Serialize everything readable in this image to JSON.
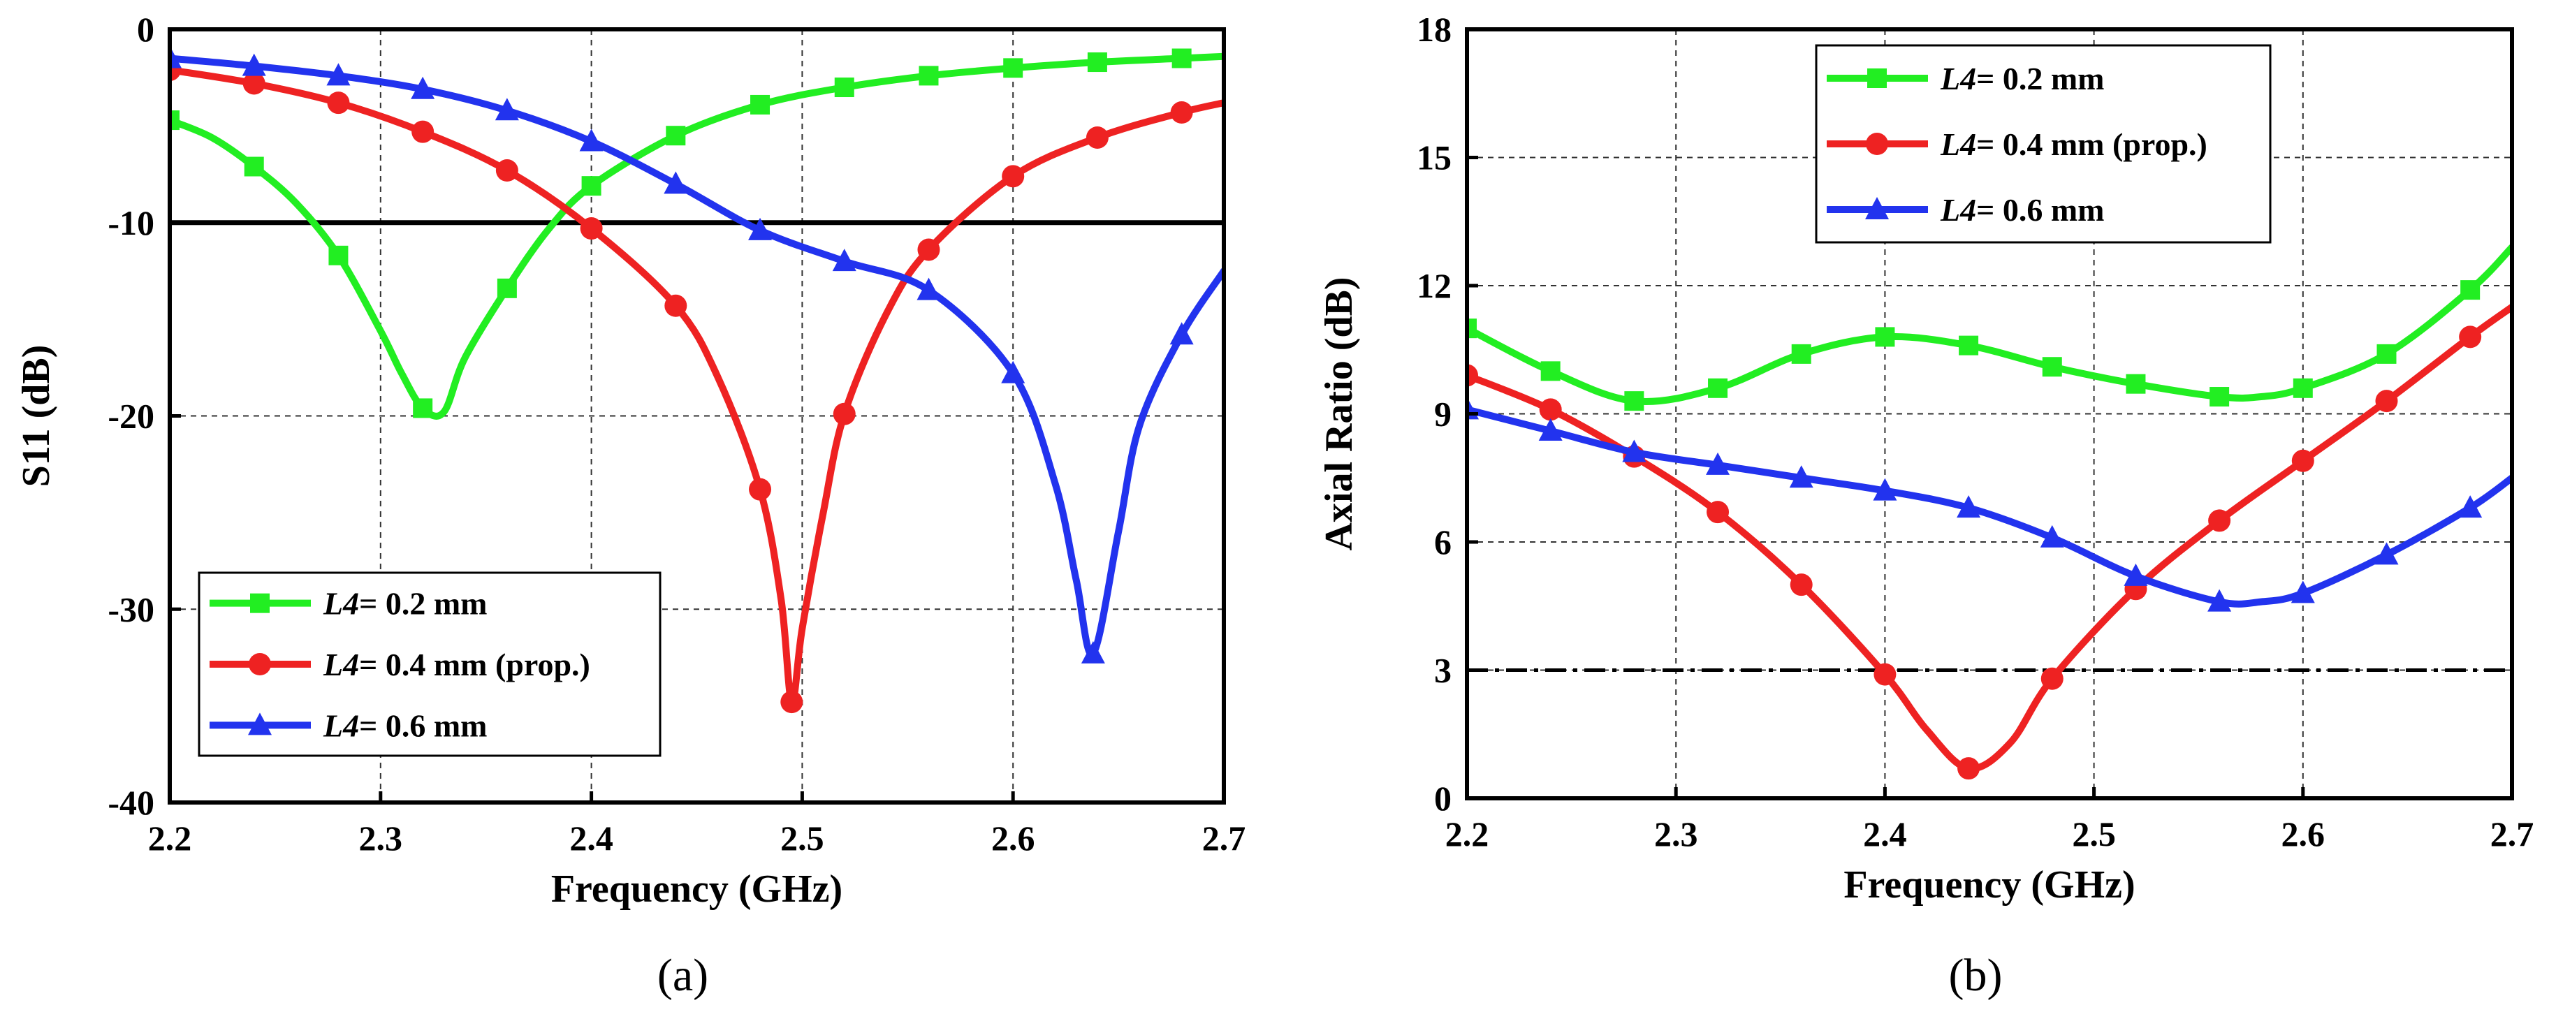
{
  "chart_data": [
    {
      "type": "line",
      "panel": "a",
      "panel_label": "(a)",
      "xlabel": "Frequency (GHz)",
      "ylabel": "S11 (dB)",
      "xlim": [
        2.2,
        2.7
      ],
      "ylim": [
        -40,
        0
      ],
      "xticks": [
        "2.2",
        "2.3",
        "2.4",
        "2.5",
        "2.6",
        "2.7"
      ],
      "yticks": [
        "0",
        "-10",
        "-20",
        "-30",
        "-40"
      ],
      "grid": true,
      "reference_line": {
        "y": -10,
        "style": "solid"
      },
      "legend_position": "bottom-left",
      "series": [
        {
          "name_italic": "L4",
          "name_rest": "= 0.2 mm",
          "color": "#22ee22",
          "marker": "square",
          "x": [
            2.2,
            2.22,
            2.24,
            2.26,
            2.28,
            2.3,
            2.31,
            2.32,
            2.33,
            2.34,
            2.36,
            2.38,
            2.4,
            2.44,
            2.48,
            2.52,
            2.56,
            2.6,
            2.64,
            2.68,
            2.7
          ],
          "y": [
            -4.7,
            -5.6,
            -7.1,
            -9.0,
            -11.7,
            -15.6,
            -17.8,
            -19.6,
            -19.8,
            -17.0,
            -13.4,
            -10.3,
            -8.1,
            -5.5,
            -3.9,
            -3.0,
            -2.4,
            -2.0,
            -1.7,
            -1.5,
            -1.4
          ],
          "marker_x": [
            2.2,
            2.24,
            2.28,
            2.32,
            2.36,
            2.4,
            2.44,
            2.48,
            2.52,
            2.56,
            2.6,
            2.64,
            2.68
          ],
          "marker_y": [
            -4.7,
            -7.1,
            -11.7,
            -19.6,
            -13.4,
            -8.1,
            -5.5,
            -3.9,
            -3.0,
            -2.4,
            -2.0,
            -1.7,
            -1.5
          ]
        },
        {
          "name_italic": "L4",
          "name_rest": "= 0.4 mm (prop.)",
          "color": "#ee2222",
          "marker": "circle",
          "x": [
            2.2,
            2.24,
            2.28,
            2.32,
            2.36,
            2.4,
            2.44,
            2.46,
            2.48,
            2.49,
            2.495,
            2.5,
            2.51,
            2.52,
            2.54,
            2.56,
            2.6,
            2.64,
            2.68,
            2.7
          ],
          "y": [
            -2.1,
            -2.8,
            -3.8,
            -5.3,
            -7.3,
            -10.3,
            -14.3,
            -18.0,
            -23.8,
            -29.5,
            -34.8,
            -31.0,
            -25.0,
            -19.9,
            -14.7,
            -11.4,
            -7.6,
            -5.6,
            -4.3,
            -3.8
          ],
          "marker_x": [
            2.2,
            2.24,
            2.28,
            2.32,
            2.36,
            2.4,
            2.44,
            2.48,
            2.495,
            2.52,
            2.56,
            2.6,
            2.64,
            2.68
          ],
          "marker_y": [
            -2.1,
            -2.8,
            -3.8,
            -5.3,
            -7.3,
            -10.3,
            -14.3,
            -23.8,
            -34.8,
            -19.9,
            -11.4,
            -7.6,
            -5.6,
            -4.3
          ]
        },
        {
          "name_italic": "L4",
          "name_rest": "= 0.6 mm",
          "color": "#2233ee",
          "marker": "triangle",
          "x": [
            2.2,
            2.24,
            2.28,
            2.32,
            2.36,
            2.4,
            2.44,
            2.48,
            2.52,
            2.56,
            2.6,
            2.62,
            2.63,
            2.638,
            2.65,
            2.66,
            2.68,
            2.7
          ],
          "y": [
            -1.5,
            -1.9,
            -2.4,
            -3.1,
            -4.2,
            -5.8,
            -8.0,
            -10.4,
            -12.0,
            -13.5,
            -17.8,
            -23.5,
            -28.5,
            -32.3,
            -26.0,
            -20.5,
            -15.8,
            -12.5
          ],
          "marker_x": [
            2.2,
            2.24,
            2.28,
            2.32,
            2.36,
            2.4,
            2.44,
            2.48,
            2.52,
            2.56,
            2.6,
            2.638,
            2.68
          ],
          "marker_y": [
            -1.5,
            -1.9,
            -2.4,
            -3.1,
            -4.2,
            -5.8,
            -8.0,
            -10.4,
            -12.0,
            -13.5,
            -17.8,
            -32.3,
            -15.8
          ]
        }
      ]
    },
    {
      "type": "line",
      "panel": "b",
      "panel_label": "(b)",
      "xlabel": "Frequency (GHz)",
      "ylabel": "Axial Ratio (dB)",
      "xlim": [
        2.2,
        2.7
      ],
      "ylim": [
        0,
        18
      ],
      "xticks": [
        "2.2",
        "2.3",
        "2.4",
        "2.5",
        "2.6",
        "2.7"
      ],
      "yticks": [
        "0",
        "3",
        "6",
        "9",
        "12",
        "15",
        "18"
      ],
      "grid": true,
      "reference_line": {
        "y": 3,
        "style": "dashed"
      },
      "legend_position": "top-left",
      "series": [
        {
          "name_italic": "L4",
          "name_rest": "= 0.2 mm",
          "color": "#22ee22",
          "marker": "square",
          "x": [
            2.2,
            2.24,
            2.28,
            2.32,
            2.36,
            2.4,
            2.44,
            2.48,
            2.52,
            2.56,
            2.58,
            2.6,
            2.64,
            2.68,
            2.7
          ],
          "y": [
            11.0,
            10.0,
            9.3,
            9.6,
            10.4,
            10.8,
            10.6,
            10.1,
            9.7,
            9.4,
            9.4,
            9.6,
            10.4,
            11.9,
            12.9
          ],
          "marker_x": [
            2.2,
            2.24,
            2.28,
            2.32,
            2.36,
            2.4,
            2.44,
            2.48,
            2.52,
            2.56,
            2.6,
            2.64,
            2.68
          ],
          "marker_y": [
            11.0,
            10.0,
            9.3,
            9.6,
            10.4,
            10.8,
            10.6,
            10.1,
            9.7,
            9.4,
            9.6,
            10.4,
            11.9
          ]
        },
        {
          "name_italic": "L4",
          "name_rest": "= 0.4 mm (prop.)",
          "color": "#ee2222",
          "marker": "circle",
          "x": [
            2.2,
            2.24,
            2.28,
            2.32,
            2.36,
            2.4,
            2.42,
            2.44,
            2.46,
            2.48,
            2.52,
            2.56,
            2.6,
            2.64,
            2.68,
            2.7
          ],
          "y": [
            9.9,
            9.1,
            8.0,
            6.7,
            5.0,
            2.9,
            1.6,
            0.7,
            1.3,
            2.8,
            4.9,
            6.5,
            7.9,
            9.3,
            10.8,
            11.5
          ],
          "marker_x": [
            2.2,
            2.24,
            2.28,
            2.32,
            2.36,
            2.4,
            2.44,
            2.48,
            2.52,
            2.56,
            2.6,
            2.64,
            2.68
          ],
          "marker_y": [
            9.9,
            9.1,
            8.0,
            6.7,
            5.0,
            2.9,
            0.7,
            2.8,
            4.9,
            6.5,
            7.9,
            9.3,
            10.8
          ]
        },
        {
          "name_italic": "L4",
          "name_rest": "= 0.6 mm",
          "color": "#2233ee",
          "marker": "triangle",
          "x": [
            2.2,
            2.24,
            2.28,
            2.32,
            2.36,
            2.4,
            2.44,
            2.48,
            2.52,
            2.56,
            2.58,
            2.6,
            2.64,
            2.68,
            2.7
          ],
          "y": [
            9.1,
            8.6,
            8.1,
            7.8,
            7.5,
            7.2,
            6.8,
            6.1,
            5.2,
            4.6,
            4.6,
            4.8,
            5.7,
            6.8,
            7.5
          ],
          "marker_x": [
            2.2,
            2.24,
            2.28,
            2.32,
            2.36,
            2.4,
            2.44,
            2.48,
            2.52,
            2.56,
            2.6,
            2.64,
            2.68
          ],
          "marker_y": [
            9.1,
            8.6,
            8.1,
            7.8,
            7.5,
            7.2,
            6.8,
            6.1,
            5.2,
            4.6,
            4.8,
            5.7,
            6.8
          ]
        }
      ]
    }
  ]
}
